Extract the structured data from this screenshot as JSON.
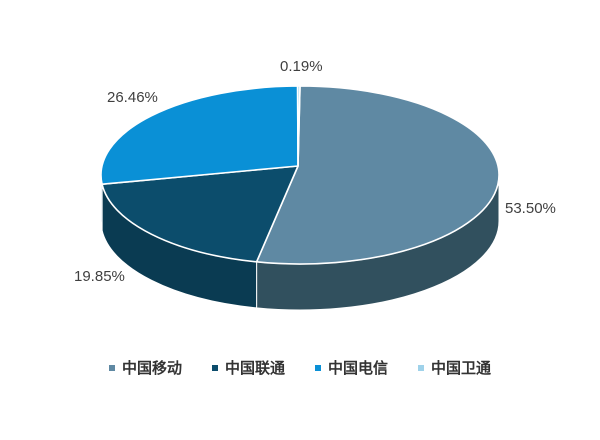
{
  "chart_data": {
    "type": "pie",
    "style": "3d",
    "title": "",
    "legend_position": "bottom",
    "start_angle_deg": 0,
    "direction": "clockwise",
    "background": "#ffffff",
    "label_color": "#3f3f3f",
    "series": [
      {
        "label": "中国移动",
        "value": 53.5,
        "value_label": "53.50%",
        "color": "#5f89a3",
        "side_color": "#31505e"
      },
      {
        "label": "中国联通",
        "value": 19.85,
        "value_label": "19.85%",
        "color": "#0c4d6c",
        "side_color": "#0a3b52"
      },
      {
        "label": "中国电信",
        "value": 26.46,
        "value_label": "26.46%",
        "color": "#0a90d6",
        "side_color": "#0a6ca3"
      },
      {
        "label": "中国卫通",
        "value": 0.19,
        "value_label": "0.19%",
        "color": "#9fd2ea",
        "side_color": "#7fb8d4"
      }
    ]
  }
}
